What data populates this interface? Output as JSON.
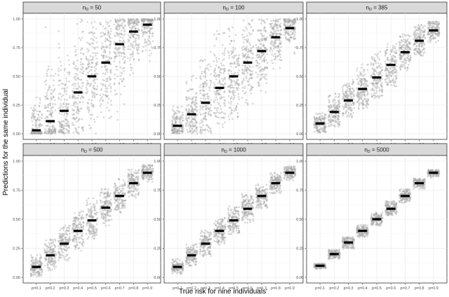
{
  "chart_data": {
    "type": "scatter",
    "subtype": "jittered strip plot with mean bars, faceted",
    "xlabel": "True risk for nine individuals'",
    "ylabel": "Predictions for the same individual",
    "categories": [
      "p=0.1",
      "p=0.2",
      "p=0.3",
      "p=0.4",
      "p=0.5",
      "p=0.6",
      "p=0.7",
      "p=0.8",
      "p=0.9"
    ],
    "true_risk": [
      0.1,
      0.2,
      0.3,
      0.4,
      0.5,
      0.6,
      0.7,
      0.8,
      0.9
    ],
    "ylim": [
      0,
      1
    ],
    "yticks": [
      0.0,
      0.25,
      0.5,
      0.75,
      1.0
    ],
    "ytick_labels": [
      "0.00",
      "0.25",
      "0.50",
      "0.75",
      "1.00"
    ],
    "grid": true,
    "layout": "2 rows x 3 columns",
    "point_color": "#a6a6a6",
    "mean_color": "#000000",
    "panels": [
      {
        "label_prefix": "n",
        "label_sub": "D",
        "label_rest": " = 50",
        "means": [
          0.03,
          0.11,
          0.2,
          0.36,
          0.5,
          0.62,
          0.78,
          0.89,
          0.95
        ],
        "lower": [
          0.0,
          0.0,
          0.0,
          0.0,
          0.0,
          0.0,
          0.04,
          0.4,
          0.55
        ],
        "upper": [
          0.45,
          0.95,
          1.0,
          1.0,
          1.0,
          1.0,
          1.0,
          1.0,
          1.0
        ]
      },
      {
        "label_prefix": "n",
        "label_sub": "D",
        "label_rest": " = 100",
        "means": [
          0.07,
          0.17,
          0.27,
          0.4,
          0.5,
          0.62,
          0.72,
          0.84,
          0.92
        ],
        "lower": [
          0.0,
          0.0,
          0.0,
          0.04,
          0.12,
          0.25,
          0.36,
          0.55,
          0.68
        ],
        "upper": [
          0.28,
          0.52,
          0.78,
          0.92,
          0.95,
          1.0,
          1.0,
          1.0,
          1.0
        ]
      },
      {
        "label_prefix": "n",
        "label_sub": "D",
        "label_rest": " = 385",
        "means": [
          0.09,
          0.19,
          0.29,
          0.39,
          0.49,
          0.6,
          0.71,
          0.81,
          0.9
        ],
        "lower": [
          0.01,
          0.06,
          0.13,
          0.21,
          0.31,
          0.41,
          0.53,
          0.67,
          0.79
        ],
        "upper": [
          0.2,
          0.36,
          0.48,
          0.61,
          0.73,
          0.8,
          0.89,
          0.95,
          0.98
        ]
      },
      {
        "label_prefix": "n",
        "label_sub": "D",
        "label_rest": " = 500",
        "means": [
          0.09,
          0.19,
          0.29,
          0.4,
          0.49,
          0.6,
          0.7,
          0.81,
          0.9
        ],
        "lower": [
          0.01,
          0.06,
          0.14,
          0.23,
          0.33,
          0.43,
          0.55,
          0.68,
          0.8
        ],
        "upper": [
          0.2,
          0.33,
          0.46,
          0.58,
          0.69,
          0.77,
          0.86,
          0.93,
          0.97
        ]
      },
      {
        "label_prefix": "n",
        "label_sub": "D",
        "label_rest": " = 1000",
        "means": [
          0.09,
          0.19,
          0.29,
          0.4,
          0.49,
          0.59,
          0.7,
          0.81,
          0.9
        ],
        "lower": [
          0.03,
          0.1,
          0.18,
          0.28,
          0.37,
          0.47,
          0.59,
          0.72,
          0.83
        ],
        "upper": [
          0.16,
          0.29,
          0.41,
          0.53,
          0.63,
          0.72,
          0.82,
          0.9,
          0.96
        ]
      },
      {
        "label_prefix": "n",
        "label_sub": "D",
        "label_rest": " = 5000",
        "means": [
          0.1,
          0.2,
          0.3,
          0.4,
          0.5,
          0.59,
          0.7,
          0.81,
          0.9
        ],
        "lower": [
          0.07,
          0.15,
          0.24,
          0.34,
          0.44,
          0.53,
          0.64,
          0.76,
          0.86
        ],
        "upper": [
          0.12,
          0.24,
          0.35,
          0.46,
          0.56,
          0.66,
          0.76,
          0.85,
          0.93
        ]
      }
    ]
  }
}
